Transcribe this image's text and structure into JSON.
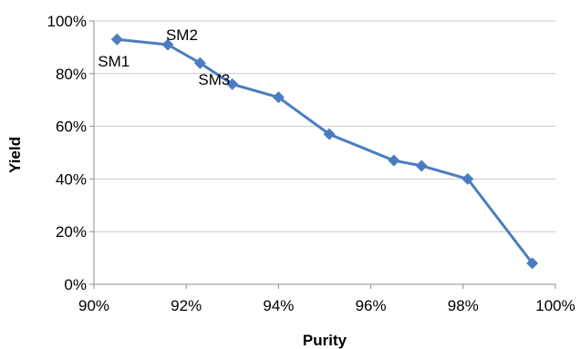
{
  "chart_data": {
    "type": "line",
    "xlabel": "Purity",
    "ylabel": "Yield",
    "xlim": [
      0.9,
      1.0
    ],
    "ylim": [
      0,
      1.0
    ],
    "x_ticks": [
      0.9,
      0.92,
      0.94,
      0.96,
      0.98,
      1.0
    ],
    "x_tick_labels": [
      "90%",
      "92%",
      "94%",
      "96%",
      "98%",
      "100%"
    ],
    "y_ticks": [
      0,
      0.2,
      0.4,
      0.6,
      0.8,
      1.0
    ],
    "y_tick_labels": [
      "0%",
      "20%",
      "40%",
      "60%",
      "80%",
      "100%"
    ],
    "grid": "horizontal",
    "legend": "none",
    "series": [
      {
        "color": "#4a7dc0",
        "marker": "diamond",
        "x": [
          0.905,
          0.916,
          0.923,
          0.93,
          0.94,
          0.951,
          0.965,
          0.971,
          0.981,
          0.995
        ],
        "y": [
          0.93,
          0.91,
          0.84,
          0.76,
          0.71,
          0.57,
          0.47,
          0.45,
          0.4,
          0.08
        ]
      }
    ],
    "annotations": [
      {
        "text": "SM1",
        "x": 0.905,
        "y": 0.93
      },
      {
        "text": "SM2",
        "x": 0.916,
        "y": 0.91
      },
      {
        "text": "SM3",
        "x": 0.923,
        "y": 0.84
      }
    ]
  }
}
